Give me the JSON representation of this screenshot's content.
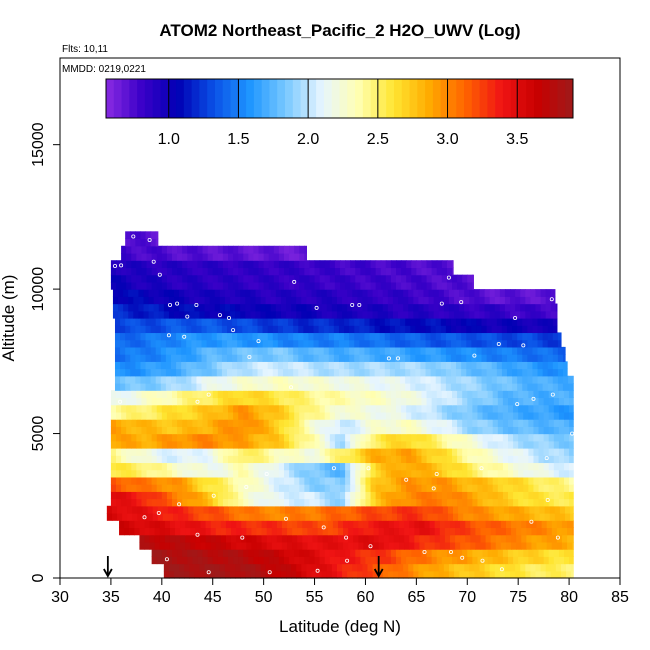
{
  "chart_data": {
    "type": "heatmap",
    "title": "ATOM2 Northeast_Pacific_2 H2O_UWV (Log)",
    "subtitle_flights": "Flts: 10,11",
    "subtitle_dates": "MMDD: 0219,0221",
    "xlabel": "Latitude (deg N)",
    "ylabel": "Altitude (m)",
    "xlim": [
      30,
      85
    ],
    "ylim": [
      0,
      18000
    ],
    "x_ticks": [
      30,
      35,
      40,
      45,
      50,
      55,
      60,
      65,
      70,
      75,
      80,
      85
    ],
    "x_tick_labels": [
      "30",
      "35",
      "40",
      "45",
      "50",
      "55",
      "60",
      "65",
      "70",
      "75",
      "80",
      "85"
    ],
    "y_ticks": [
      0,
      5000,
      10000,
      15000
    ],
    "y_tick_labels": [
      "0",
      "5000",
      "10000",
      "15000"
    ],
    "colorbar": {
      "range": [
        0.55,
        3.9
      ],
      "ticks": [
        1.0,
        1.5,
        2.0,
        2.5,
        3.0,
        3.5
      ],
      "tick_labels": [
        "1.0",
        "1.5",
        "2.0",
        "2.5",
        "3.0",
        "3.5"
      ],
      "colors": [
        "#8a2be2",
        "#3a00c8",
        "#0000b4",
        "#0a50e6",
        "#1e96ff",
        "#78c8ff",
        "#e6f5ff",
        "#ffffb4",
        "#ffe632",
        "#ffaa00",
        "#ff6400",
        "#f01414",
        "#c80000",
        "#9e1a1a"
      ]
    },
    "altitude_bands": [
      {
        "z0": 0,
        "z1": 500,
        "lat0": 40.2,
        "lat1": 80.4,
        "kind": "surface",
        "vals": [
          3.85,
          3.85,
          3.8,
          3.6,
          3.35,
          3.1,
          2.85,
          2.7,
          2.55,
          2.5
        ]
      },
      {
        "z0": 500,
        "z1": 1000,
        "lat0": 39.0,
        "lat1": 80.4,
        "kind": "surface",
        "vals": [
          3.85,
          3.8,
          3.75,
          3.6,
          3.4,
          3.25,
          3.0,
          2.85,
          2.7,
          2.6
        ]
      },
      {
        "z0": 1000,
        "z1": 1500,
        "lat0": 37.8,
        "lat1": 80.4,
        "kind": "surface",
        "vals": [
          3.75,
          3.7,
          3.6,
          3.5,
          3.45,
          3.5,
          3.3,
          3.15,
          2.95,
          2.85
        ]
      },
      {
        "z0": 1500,
        "z1": 2000,
        "lat0": 35.8,
        "lat1": 80.4,
        "kind": "surface",
        "vals": [
          3.6,
          3.5,
          3.35,
          3.3,
          3.2,
          3.4,
          3.45,
          3.2,
          3.05,
          2.9
        ]
      },
      {
        "z0": 2000,
        "z1": 2500,
        "lat0": 34.6,
        "lat1": 80.4,
        "kind": "surface",
        "vals": [
          3.55,
          3.4,
          3.2,
          3.0,
          3.05,
          3.2,
          3.3,
          3.0,
          2.85,
          2.75
        ]
      },
      {
        "z0": 2500,
        "z1": 3000,
        "lat0": 35.0,
        "lat1": 80.4,
        "kind": "profile",
        "vals": [
          3.5,
          3.35,
          3.05,
          2.75,
          2.3,
          2.1,
          2.05,
          1.9,
          2.75,
          3.0,
          3.05,
          2.9,
          2.7,
          2.6,
          2.55
        ]
      },
      {
        "z0": 3000,
        "z1": 3500,
        "lat0": 35.0,
        "lat1": 80.4,
        "kind": "profile",
        "vals": [
          3.2,
          3.05,
          2.95,
          2.6,
          2.35,
          2.1,
          1.9,
          1.85,
          2.75,
          2.95,
          2.95,
          2.8,
          2.7,
          2.55,
          2.4
        ]
      },
      {
        "z0": 3500,
        "z1": 4000,
        "lat0": 35.0,
        "lat1": 80.4,
        "kind": "profile",
        "vals": [
          2.6,
          2.5,
          2.3,
          2.15,
          2.35,
          2.1,
          1.85,
          1.75,
          2.7,
          2.9,
          2.75,
          2.5,
          2.3,
          2.15,
          2.05
        ]
      },
      {
        "z0": 4000,
        "z1": 4500,
        "lat0": 35.0,
        "lat1": 80.4,
        "kind": "profile",
        "vals": [
          2.45,
          2.2,
          2.05,
          2.15,
          2.55,
          2.35,
          2.2,
          2.5,
          2.85,
          2.9,
          2.65,
          2.35,
          2.15,
          2.0,
          1.9
        ]
      },
      {
        "z0": 4500,
        "z1": 5000,
        "lat0": 35.0,
        "lat1": 80.4,
        "kind": "profile",
        "vals": [
          2.9,
          2.85,
          2.95,
          3.0,
          2.9,
          2.75,
          2.4,
          1.95,
          2.55,
          2.7,
          2.45,
          2.2,
          2.0,
          1.9,
          1.85
        ]
      },
      {
        "z0": 5000,
        "z1": 5500,
        "lat0": 35.0,
        "lat1": 80.4,
        "kind": "profile",
        "vals": [
          2.9,
          2.8,
          2.75,
          2.85,
          3.0,
          2.75,
          2.3,
          2.0,
          2.25,
          2.3,
          2.1,
          1.9,
          1.8,
          1.75,
          1.7
        ]
      },
      {
        "z0": 5500,
        "z1": 6000,
        "lat0": 35.0,
        "lat1": 80.4,
        "kind": "profile",
        "vals": [
          2.4,
          2.5,
          2.65,
          2.75,
          2.95,
          2.75,
          2.45,
          2.25,
          2.2,
          2.1,
          1.95,
          1.8,
          1.7,
          1.65,
          1.6
        ]
      },
      {
        "z0": 6000,
        "z1": 6500,
        "lat0": 35.0,
        "lat1": 80.4,
        "kind": "profile",
        "vals": [
          2.1,
          2.25,
          2.4,
          2.55,
          2.7,
          2.6,
          2.45,
          2.35,
          2.3,
          2.2,
          2.05,
          1.9,
          1.75,
          1.7,
          1.7
        ]
      },
      {
        "z0": 6500,
        "z1": 7000,
        "lat0": 35.4,
        "lat1": 80.4,
        "kind": "profile",
        "vals": [
          1.8,
          1.85,
          1.95,
          2.15,
          2.25,
          2.3,
          2.25,
          2.2,
          2.15,
          2.1,
          2.0,
          1.9,
          1.8,
          1.7,
          1.7
        ]
      },
      {
        "z0": 7000,
        "z1": 7500,
        "lat0": 35.4,
        "lat1": 79.8,
        "kind": "profile",
        "vals": [
          1.55,
          1.6,
          1.7,
          1.85,
          2.0,
          2.05,
          2.0,
          1.95,
          1.95,
          1.95,
          1.9,
          1.8,
          1.7,
          1.6,
          1.55
        ]
      },
      {
        "z0": 7500,
        "z1": 8000,
        "lat0": 35.4,
        "lat1": 79.6,
        "kind": "profile",
        "vals": [
          1.45,
          1.5,
          1.6,
          1.75,
          1.8,
          1.85,
          1.75,
          1.7,
          1.7,
          1.65,
          1.6,
          1.55,
          1.5,
          1.45,
          1.4
        ]
      },
      {
        "z0": 8000,
        "z1": 8500,
        "lat0": 35.4,
        "lat1": 79.2,
        "kind": "profile",
        "vals": [
          1.4,
          1.45,
          1.55,
          1.6,
          1.6,
          1.55,
          1.5,
          1.5,
          1.45,
          1.4,
          1.35,
          1.35,
          1.3,
          1.3,
          1.25
        ]
      },
      {
        "z0": 8500,
        "z1": 9000,
        "lat0": 35.4,
        "lat1": 78.8,
        "kind": "profile",
        "vals": [
          1.3,
          1.3,
          1.35,
          1.35,
          1.3,
          1.25,
          1.2,
          1.2,
          1.15,
          1.1,
          1.1,
          1.05,
          1.0,
          1.0,
          0.95
        ]
      },
      {
        "z0": 9000,
        "z1": 9500,
        "lat0": 35.2,
        "lat1": 78.8,
        "kind": "profile",
        "vals": [
          1.2,
          1.15,
          1.1,
          1.05,
          1.05,
          1.0,
          1.0,
          0.95,
          0.95,
          0.9,
          0.9,
          0.85,
          0.85,
          0.8,
          0.8
        ]
      },
      {
        "z0": 9500,
        "z1": 10000,
        "lat0": 35.2,
        "lat1": 78.6,
        "kind": "profile",
        "vals": [
          1.1,
          1.05,
          1.0,
          0.95,
          0.95,
          0.9,
          0.9,
          0.9,
          0.85,
          0.85,
          0.8,
          0.75,
          0.7,
          0.7,
          0.7
        ]
      },
      {
        "z0": 10000,
        "z1": 10500,
        "lat0": 35.0,
        "lat1": 70.6,
        "kind": "profile",
        "vals": [
          1.0,
          0.95,
          0.9,
          0.88,
          0.86,
          0.85,
          0.84,
          0.82,
          0.8,
          0.78,
          0.75,
          0.72
        ]
      },
      {
        "z0": 10500,
        "z1": 11000,
        "lat0": 35.0,
        "lat1": 68.6,
        "kind": "profile",
        "vals": [
          0.95,
          0.9,
          0.88,
          0.86,
          0.85,
          0.83,
          0.8,
          0.78,
          0.75,
          0.72
        ]
      },
      {
        "z0": 11000,
        "z1": 11500,
        "lat0": 36.0,
        "lat1": 54.2,
        "kind": "profile",
        "vals": [
          0.8,
          0.75,
          0.72,
          0.7,
          0.68,
          0.66
        ]
      },
      {
        "z0": 11500,
        "z1": 12000,
        "lat0": 36.4,
        "lat1": 39.6,
        "kind": "profile",
        "vals": [
          0.75,
          0.7
        ]
      }
    ],
    "markers": {
      "arrow_latitudes": [
        34.7,
        61.3
      ],
      "sample_points": [
        [
          35.4,
          10800
        ],
        [
          36.0,
          10820
        ],
        [
          37.2,
          11820
        ],
        [
          38.8,
          11700
        ],
        [
          39.2,
          10950
        ],
        [
          39.8,
          10500
        ],
        [
          40.8,
          9450
        ],
        [
          41.5,
          9500
        ],
        [
          42.5,
          9050
        ],
        [
          43.4,
          9450
        ],
        [
          45.7,
          9100
        ],
        [
          46.6,
          9000
        ],
        [
          47.0,
          8580
        ],
        [
          42.2,
          8350
        ],
        [
          40.7,
          8400
        ],
        [
          49.5,
          8200
        ],
        [
          53.0,
          10250
        ],
        [
          55.2,
          9350
        ],
        [
          58.7,
          9450
        ],
        [
          59.4,
          9450
        ],
        [
          68.2,
          10400
        ],
        [
          67.5,
          9500
        ],
        [
          69.4,
          9550
        ],
        [
          74.7,
          9000
        ],
        [
          78.3,
          9650
        ],
        [
          79.2,
          8750
        ],
        [
          75.5,
          8050
        ],
        [
          73.1,
          8100
        ],
        [
          70.7,
          7700
        ],
        [
          63.2,
          7600
        ],
        [
          62.3,
          7600
        ],
        [
          52.7,
          6600
        ],
        [
          48.6,
          7650
        ],
        [
          44.6,
          6350
        ],
        [
          43.5,
          6100
        ],
        [
          35.9,
          6100
        ],
        [
          74.9,
          6020
        ],
        [
          76.5,
          6200
        ],
        [
          78.4,
          6350
        ],
        [
          80.3,
          5000
        ],
        [
          77.8,
          4150
        ],
        [
          71.4,
          3800
        ],
        [
          67.0,
          3600
        ],
        [
          64.0,
          3400
        ],
        [
          60.3,
          3800
        ],
        [
          56.9,
          3800
        ],
        [
          50.3,
          3600
        ],
        [
          48.3,
          3150
        ],
        [
          45.1,
          2850
        ],
        [
          41.7,
          2550
        ],
        [
          39.7,
          2250
        ],
        [
          38.3,
          2100
        ],
        [
          43.5,
          1500
        ],
        [
          47.9,
          1400
        ],
        [
          52.2,
          2050
        ],
        [
          55.9,
          1750
        ],
        [
          58.1,
          1400
        ],
        [
          60.5,
          1100
        ],
        [
          65.8,
          900
        ],
        [
          69.5,
          700
        ],
        [
          71.5,
          600
        ],
        [
          76.3,
          1950
        ],
        [
          77.9,
          2700
        ],
        [
          66.7,
          3100
        ],
        [
          40.5,
          650
        ],
        [
          44.6,
          200
        ],
        [
          50.6,
          200
        ],
        [
          55.3,
          250
        ],
        [
          58.2,
          600
        ],
        [
          68.4,
          900
        ],
        [
          73.4,
          300
        ],
        [
          78.9,
          1400
        ]
      ]
    }
  }
}
